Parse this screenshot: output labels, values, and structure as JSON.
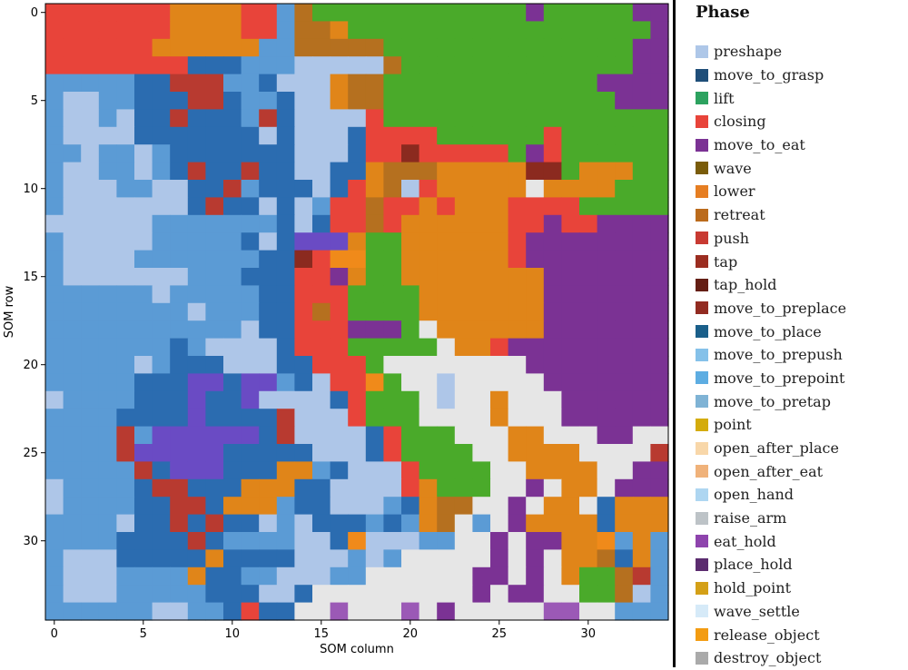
{
  "chart_data": {
    "type": "heatmap",
    "xlabel": "SOM column",
    "ylabel": "SOM row",
    "xlim": [
      -0.5,
      34.5
    ],
    "ylim": [
      34.5,
      -0.5
    ],
    "x_ticks": [
      0,
      5,
      10,
      15,
      20,
      25,
      30
    ],
    "y_ticks": [
      0,
      5,
      10,
      15,
      20,
      25,
      30
    ],
    "rows": 35,
    "cols": 35,
    "legend_title": "Phase",
    "legend_position": "right",
    "phases": [
      {
        "key": "a",
        "name": "preshape",
        "color": "#aec7e8"
      },
      {
        "key": "b",
        "name": "move_to_grasp",
        "color": "#1f4e79"
      },
      {
        "key": "c",
        "name": "lift",
        "color": "#2ca25f"
      },
      {
        "key": "d",
        "name": "closing",
        "color": "#e8443a"
      },
      {
        "key": "e",
        "name": "move_to_eat",
        "color": "#7b3294"
      },
      {
        "key": "f",
        "name": "wave",
        "color": "#7a5c0a"
      },
      {
        "key": "g",
        "name": "lower",
        "color": "#e67e22"
      },
      {
        "key": "h",
        "name": "retreat",
        "color": "#bb6b1c"
      },
      {
        "key": "i",
        "name": "push",
        "color": "#c83a32"
      },
      {
        "key": "j",
        "name": "tap",
        "color": "#9b2d20"
      },
      {
        "key": "k",
        "name": "tap_hold",
        "color": "#641e14"
      },
      {
        "key": "l",
        "name": "move_to_preplace",
        "color": "#922b21"
      },
      {
        "key": "m",
        "name": "move_to_place",
        "color": "#1a5f8a"
      },
      {
        "key": "n",
        "name": "move_to_prepush",
        "color": "#85c1e9"
      },
      {
        "key": "o",
        "name": "move_to_prepoint",
        "color": "#5dade2"
      },
      {
        "key": "p",
        "name": "move_to_pretap",
        "color": "#7fb3d5"
      },
      {
        "key": "q",
        "name": "point",
        "color": "#d4ac0d"
      },
      {
        "key": "r",
        "name": "open_after_place",
        "color": "#f8d7a9"
      },
      {
        "key": "s",
        "name": "open_after_eat",
        "color": "#f0b27a"
      },
      {
        "key": "t",
        "name": "open_hand",
        "color": "#aed6f1"
      },
      {
        "key": "u",
        "name": "raise_arm",
        "color": "#bdc3c7"
      },
      {
        "key": "v",
        "name": "eat_hold",
        "color": "#8e44ad"
      },
      {
        "key": "w",
        "name": "place_hold",
        "color": "#5b2c6f"
      },
      {
        "key": "x",
        "name": "hold_point",
        "color": "#d4a017"
      },
      {
        "key": "y",
        "name": "wave_settle",
        "color": "#d6eaf8"
      },
      {
        "key": "z",
        "name": "release_object",
        "color": "#f39c12"
      },
      {
        "key": "A",
        "name": "destroy_object",
        "color": "#aaaaaa"
      }
    ],
    "cell_colors": {
      "R": "#e8443a",
      "O": "#e08519",
      "G": "#4aaa2a",
      "P": "#7b3294",
      "B": "#2b6cb0",
      "M": "#5b9bd5",
      "L": "#aec6e8",
      "W": "#e6e6e6",
      "T": "#b5701f",
      "K": "#b83a30",
      "Z": "#f08a1a",
      "V": "#6a4bc4",
      "D": "#8b2a1f",
      "X": "#9b59b6"
    },
    "grid": [
      "RRRRRRROOOORRMTGGGGGGGGGGGGPGGGGGPP",
      "RRRRRRROOOORRMTTOGGGGGGGGGGGGGGGGGP",
      "RRRRRROOOOOOMMTTTTTGGGGGGGGGGGGGGPP",
      "RRRRRRRRBBBMMMLLLLLTGGGGGGGGGGGGGPP",
      "MMMMMBBKKKMMBLLLOTTGGGGGGGGGGGGPPPP",
      "MLLMMBBBKKBMMBLLOTTGGGGGGGGGGGGGPPP",
      "MLLMLBBKBBBMKBLLLLRGGGGGGGGGGGGGGGG",
      "MLLLLBBBBBBBLBLLLBRRRRGGGGGGRGGGGGG",
      "MMLMMLMBBBBBBBLLLBRRDRRRRRGPRGGGGGG",
      "MLLMMLMBKBBKBBLLBBOTTTOOOOODDGOOOGG",
      "MLLLMMLLBBKMBBBLBROTLROOOOOWOOOOGGG",
      "MLLLLLLLBKBBLBLMRRTRROROOORRRRGGGGG",
      "LLLLLLMMMMMMMBLBRRTROOOOOORRPRRPPPP",
      "MLLLLLMMMMMBLBVVVOGGOOOOOORPPPPPPPP",
      "MLLLLMMMMMMMBBDRZZGGOOOOOORPPPPPPPP",
      "MLLLLLLLMMMBBBRRPOGGOOOOOOOOPPPPPPP",
      "MMMMMMLMMMMMBBRRRGGGGOOOOOOOPPPPPPP",
      "MMMMMMMMLMMMBBRTRGGGGOOOOOOOPPPPPPP",
      "MMMMMMMMMMMLBBRRRPPPGWOOOOOOPPPPPPP",
      "MMMMMMMBMLLLLBRRRGGGGGWOORPPPPPPPPP",
      "MMMMMLMBBBLLLBBRRRGWWWWWWWWPPPPPPPP",
      "MMMMMBBBVVBVVMBLRRZGWWLWWWWWPPPPPPP",
      "LMMMMBBBVBBVLLLLBRGGGWLWWOWWWPPPPPP",
      "MMMMBBBBVBBBBKLLLRGGGWWWWOWWWPPPPPP",
      "MMMMKMVVVVVVBKLLLLBRGGGWWWOOWWWPPWW",
      "MMMMKVVVVVBBBBBLLLBRGGGGWWOOOOWWWWK",
      "MMMMMKBVVVBBBOOMBLLLRGGGGWWOOOOWWPP",
      "LMMMMBKKBBBOOOBBLLLLROGGGWWPWOOWPPP",
      "LMMMMBBKKBOOOMBBLLLMBOTTWWPWOOWBOOO",
      "MMMMLBBKBKBBLMLBBBMBMOTWMWPOOOOBOOO",
      "MMMMBBBBKBMMMMLLBZLLLMMWWPWPPOOZMOM",
      "MLLLBBBBBOBBBBLLLMLMWWWWWPWPWOOTBOM",
      "MLLLMMMMOBBMMLLLMMWWWWWWPPWPWOGGTKM",
      "MLLLMMMMMBBBLLBWWWWWWWWWPWPPWWGGTLM",
      "MMMMMMLLMMBRBBWWXWWWXWPWWWWWXXWWMMM"
    ]
  }
}
